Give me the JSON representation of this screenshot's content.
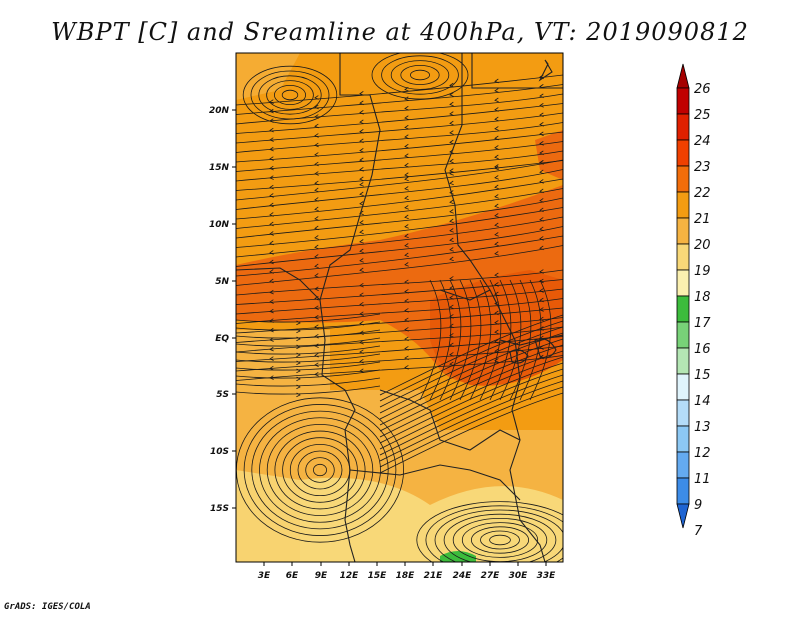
{
  "title": "WBPT [C] and Sreamline at 400hPa, VT: 2019090812",
  "credit": "GrADS: IGES/COLA",
  "map": {
    "lat_labels": [
      "20N",
      "15N",
      "10N",
      "5N",
      "EQ",
      "5S",
      "10S",
      "15S"
    ],
    "lon_labels": [
      "3E",
      "6E",
      "9E",
      "12E",
      "15E",
      "18E",
      "21E",
      "24E",
      "27E",
      "30E",
      "33E"
    ],
    "field": "wet-bulb potential temperature",
    "overlay": "streamlines"
  },
  "colorbar": {
    "labels": [
      "26",
      "25",
      "24",
      "23",
      "22",
      "21",
      "20",
      "19",
      "18",
      "17",
      "16",
      "15",
      "14",
      "13",
      "12",
      "11",
      "9",
      "7"
    ],
    "colors": [
      "#a50000",
      "#c00000",
      "#e02000",
      "#f04000",
      "#f26d0a",
      "#f39c12",
      "#f5b342",
      "#f8d878",
      "#fbf0b0",
      "#3cbc3c",
      "#78d278",
      "#b4e6b4",
      "#e0f4fc",
      "#b4dcf8",
      "#8cc8f4",
      "#64aaf0",
      "#3c8ce8",
      "#1e64d2"
    ]
  },
  "colors": {
    "dark_orange": "#e8620a",
    "orange": "#f39c12",
    "light_orange": "#f5b342",
    "pale_yellow": "#f8d878",
    "green": "#3cbc3c",
    "streamline": "#1a1a1a"
  }
}
